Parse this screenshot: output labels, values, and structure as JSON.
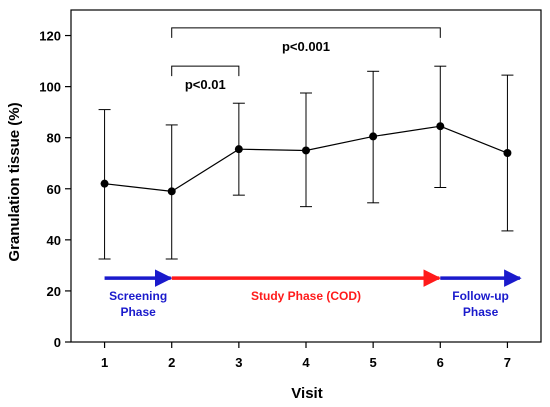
{
  "colors": {
    "axis": "#000000",
    "series": "#000000",
    "screening_arrow": "#1a1acc",
    "study_arrow": "#ff1a1a",
    "followup_arrow": "#1a1acc"
  },
  "chart_data": {
    "type": "line",
    "xlabel": "Visit",
    "ylabel": "Granulation tissue (%)",
    "xlim": [
      0.5,
      7.5
    ],
    "ylim": [
      0,
      130
    ],
    "x_ticks": [
      1,
      2,
      3,
      4,
      5,
      6,
      7
    ],
    "y_ticks": [
      0,
      20,
      40,
      60,
      80,
      100,
      120
    ],
    "grid": false,
    "series": [
      {
        "x": [
          1,
          2,
          3,
          4,
          5,
          6,
          7
        ],
        "y": [
          62,
          59,
          75.5,
          75,
          80.5,
          84.5,
          74
        ],
        "error_low": [
          32.5,
          32.5,
          57.5,
          53,
          54.5,
          60.5,
          43.5
        ],
        "error_high": [
          91,
          85,
          93.5,
          97.5,
          106,
          108,
          104.5
        ]
      }
    ],
    "significance": [
      {
        "from": 2,
        "to": 3,
        "bracket_y": 108,
        "label": "p<0.01"
      },
      {
        "from": 2,
        "to": 6,
        "bracket_y": 123,
        "label": "p<0.001"
      }
    ],
    "phases": [
      {
        "from": 1,
        "to": 2,
        "line1": "Screening",
        "line2": "Phase",
        "color_key": "screening_arrow"
      },
      {
        "from": 2,
        "to": 6,
        "line1": "Study Phase (COD)",
        "line2": "",
        "color_key": "study_arrow"
      },
      {
        "from": 6,
        "to": 7.2,
        "line1": "Follow-up",
        "line2": "Phase",
        "color_key": "followup_arrow"
      }
    ],
    "phase_arrow_y": 25
  }
}
